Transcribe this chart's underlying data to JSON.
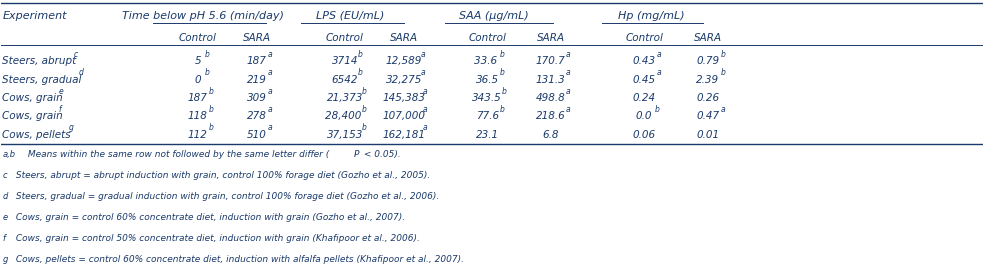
{
  "col_headers_row1": [
    "Experiment",
    "Time below pH 5.6 (min/day)",
    "",
    "LPS (EU/mL)",
    "",
    "SAA (μg/mL)",
    "",
    "Hp (mg/mL)",
    ""
  ],
  "col_headers_row2": [
    "",
    "Control",
    "SARA",
    "Control",
    "SARA",
    "Control",
    "SARA",
    "Control",
    "SARA"
  ],
  "rows": [
    {
      "experiment": "Steers, abrupt",
      "experiment_sup": "c",
      "values": [
        {
          "text": "5",
          "sup": "b"
        },
        {
          "text": "187",
          "sup": "a"
        },
        {
          "text": "3714",
          "sup": "b"
        },
        {
          "text": "12,589",
          "sup": "a"
        },
        {
          "text": "33.6 ",
          "sup": "b"
        },
        {
          "text": "170.7",
          "sup": "a"
        },
        {
          "text": "0.43",
          "sup": "a"
        },
        {
          "text": "0.79",
          "sup": "b"
        }
      ]
    },
    {
      "experiment": "Steers, gradual",
      "experiment_sup": "d",
      "values": [
        {
          "text": "0",
          "sup": "b"
        },
        {
          "text": "219",
          "sup": "a"
        },
        {
          "text": "6542",
          "sup": "b"
        },
        {
          "text": "32,275",
          "sup": "a"
        },
        {
          "text": "36.5",
          "sup": "b"
        },
        {
          "text": "131.3",
          "sup": "a"
        },
        {
          "text": "0.45",
          "sup": "a"
        },
        {
          "text": "2.39",
          "sup": "b"
        }
      ]
    },
    {
      "experiment": "Cows, grain",
      "experiment_sup": "e",
      "values": [
        {
          "text": "187",
          "sup": "b"
        },
        {
          "text": "309",
          "sup": "a"
        },
        {
          "text": "21,373",
          "sup": "b"
        },
        {
          "text": "145,383",
          "sup": "a"
        },
        {
          "text": "343.5",
          "sup": "b"
        },
        {
          "text": "498.8",
          "sup": "a"
        },
        {
          "text": "0.24",
          "sup": ""
        },
        {
          "text": "0.26",
          "sup": ""
        }
      ]
    },
    {
      "experiment": "Cows, grain",
      "experiment_sup": "f",
      "values": [
        {
          "text": "118",
          "sup": "b"
        },
        {
          "text": "278",
          "sup": "a"
        },
        {
          "text": "28,400 ",
          "sup": "b"
        },
        {
          "text": "107,000",
          "sup": "a"
        },
        {
          "text": "77.6",
          "sup": "b"
        },
        {
          "text": "218.6",
          "sup": "a"
        },
        {
          "text": "0.0",
          "sup": "b"
        },
        {
          "text": "0.47",
          "sup": "a"
        }
      ]
    },
    {
      "experiment": "Cows, pellets",
      "experiment_sup": "g",
      "values": [
        {
          "text": "112",
          "sup": "b"
        },
        {
          "text": "510",
          "sup": "a"
        },
        {
          "text": "37,153",
          "sup": "b"
        },
        {
          "text": "162,181",
          "sup": "a"
        },
        {
          "text": "23.1",
          "sup": ""
        },
        {
          "text": "6.8",
          "sup": ""
        },
        {
          "text": "0.06",
          "sup": ""
        },
        {
          "text": "0.01",
          "sup": ""
        }
      ]
    }
  ],
  "footnotes": [
    {
      "sup": "a,b",
      "text": " Means within the same row not followed by the same letter differ (",
      "italic_part": "P",
      "text2": " < 0.05)."
    },
    {
      "sup": "c",
      "text": " Steers, abrupt = abrupt induction with grain, control 100% forage diet (Gozho et al., 2005)."
    },
    {
      "sup": "d",
      "text": " Steers, gradual = gradual induction with grain, control 100% forage diet (Gozho et al., 2006)."
    },
    {
      "sup": "e",
      "text": " Cows, grain = control 60% concentrate diet, induction with grain (Gozho et al., 2007)."
    },
    {
      "sup": "f",
      "text": " Cows, grain = control 50% concentrate diet, induction with grain (Khafipoor et al., 2006)."
    },
    {
      "sup": "g",
      "text": " Cows, pellets = control 60% concentrate diet, induction with alfalfa pellets (Khafipoor et al., 2007)."
    }
  ],
  "font_color": "#1a3a6b",
  "font_size": 7.5,
  "header_font_size": 8.0
}
